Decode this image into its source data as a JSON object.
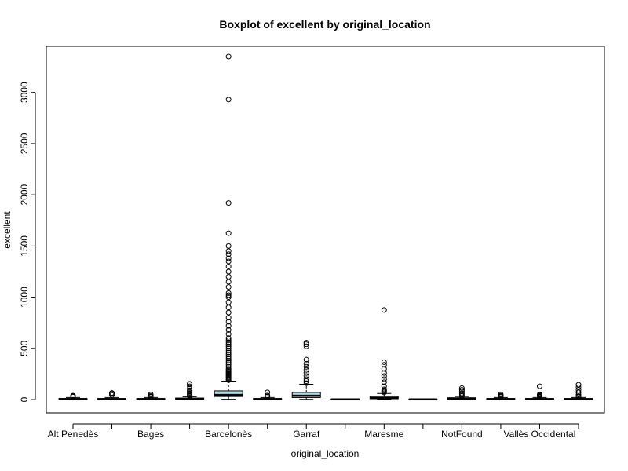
{
  "chart_data": {
    "type": "boxplot",
    "title": "Boxplot of excellent by original_location",
    "xlabel": "original_location",
    "ylabel": "excellent",
    "ylim": [
      -130,
      3450
    ],
    "yticks": [
      0,
      500,
      1000,
      1500,
      2000,
      2500,
      3000
    ],
    "ytick_labels": [
      "0",
      "500",
      "1000",
      "1500",
      "2000",
      "2500",
      "3000"
    ],
    "box_color": "#ADD8E6",
    "groups": [
      {
        "label": "Alt Penedès",
        "min": 0,
        "q1": 2,
        "median": 5,
        "q3": 10,
        "max": 20,
        "outliers": [
          28,
          32,
          38
        ]
      },
      {
        "label": "",
        "min": 0,
        "q1": 2,
        "median": 5,
        "q3": 10,
        "max": 20,
        "outliers": [
          45,
          60,
          65
        ]
      },
      {
        "label": "Bages",
        "min": 0,
        "q1": 2,
        "median": 5,
        "q3": 10,
        "max": 20,
        "outliers": [
          25,
          30,
          38,
          50
        ]
      },
      {
        "label": "",
        "min": 0,
        "q1": 3,
        "median": 8,
        "q3": 15,
        "max": 28,
        "outliers": [
          32,
          38,
          45,
          55,
          65,
          75,
          90,
          105,
          130,
          150,
          155
        ]
      },
      {
        "label": "Barcelonès",
        "min": 3,
        "q1": 30,
        "median": 45,
        "q3": 85,
        "max": 180,
        "outliers": [
          190,
          200,
          210,
          220,
          230,
          240,
          250,
          260,
          270,
          280,
          290,
          300,
          320,
          340,
          360,
          380,
          400,
          420,
          440,
          460,
          480,
          500,
          520,
          540,
          560,
          580,
          600,
          640,
          680,
          720,
          760,
          800,
          850,
          900,
          950,
          1000,
          1020,
          1040,
          1100,
          1150,
          1200,
          1250,
          1300,
          1350,
          1380,
          1420,
          1450,
          1500,
          1625,
          1920,
          2930,
          3350
        ]
      },
      {
        "label": "",
        "min": 0,
        "q1": 2,
        "median": 5,
        "q3": 10,
        "max": 20,
        "outliers": [
          30,
          40,
          70
        ]
      },
      {
        "label": "Garraf",
        "min": 2,
        "q1": 20,
        "median": 38,
        "q3": 70,
        "max": 150,
        "outliers": [
          160,
          180,
          200,
          230,
          260,
          290,
          320,
          350,
          390,
          520,
          540,
          555
        ]
      },
      {
        "label": "",
        "min": 0,
        "q1": 1,
        "median": 2,
        "q3": 4,
        "max": 8,
        "outliers": []
      },
      {
        "label": "Maresme",
        "min": 0,
        "q1": 8,
        "median": 15,
        "q3": 30,
        "max": 60,
        "outliers": [
          70,
          80,
          90,
          100,
          130,
          170,
          200,
          230,
          260,
          300,
          340,
          365,
          875
        ]
      },
      {
        "label": "",
        "min": 0,
        "q1": 1,
        "median": 2,
        "q3": 4,
        "max": 6,
        "outliers": []
      },
      {
        "label": "NotFound",
        "min": 0,
        "q1": 5,
        "median": 10,
        "q3": 18,
        "max": 30,
        "outliers": [
          35,
          45,
          60,
          80,
          95,
          112
        ]
      },
      {
        "label": "",
        "min": 0,
        "q1": 2,
        "median": 5,
        "q3": 10,
        "max": 20,
        "outliers": [
          25,
          32,
          40,
          50
        ]
      },
      {
        "label": "Vallès Occidental",
        "min": 0,
        "q1": 2,
        "median": 5,
        "q3": 10,
        "max": 20,
        "outliers": [
          22,
          25,
          28,
          32,
          36,
          40,
          45,
          50,
          130
        ]
      },
      {
        "label": "",
        "min": 0,
        "q1": 2,
        "median": 5,
        "q3": 10,
        "max": 20,
        "outliers": [
          25,
          35,
          50,
          70,
          95,
          120,
          145
        ]
      }
    ],
    "grid": false,
    "legend": "none"
  }
}
